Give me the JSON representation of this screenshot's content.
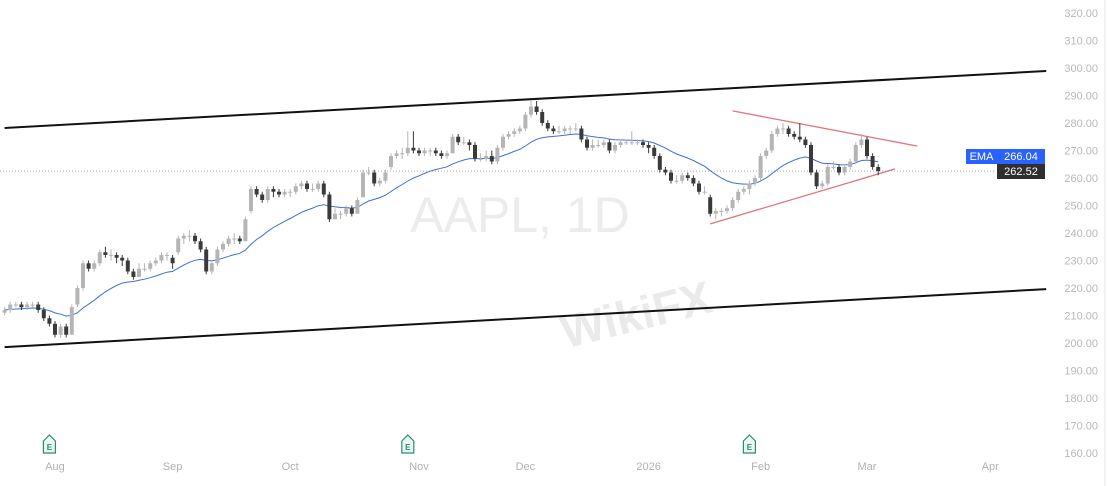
{
  "chart_data": {
    "type": "candlestick",
    "symbol_watermark": "AAPL, 1D",
    "overlay_watermark": "WikiFX",
    "ylim": [
      160,
      320
    ],
    "yticks": [
      "320.00",
      "310.00",
      "300.00",
      "290.00",
      "280.00",
      "270.00",
      "260.00",
      "250.00",
      "240.00",
      "230.00",
      "220.00",
      "210.00",
      "200.00",
      "190.00",
      "180.00",
      "170.00",
      "160.00"
    ],
    "xticks": [
      {
        "label": "Aug",
        "date": "2025-08-01"
      },
      {
        "label": "Sep",
        "date": "2025-09-02"
      },
      {
        "label": "Oct",
        "date": "2025-10-01"
      },
      {
        "label": "Nov",
        "date": "2025-11-03"
      },
      {
        "label": "Dec",
        "date": "2025-12-01"
      },
      {
        "label": "2026",
        "date": "2026-01-02"
      },
      {
        "label": "Feb",
        "date": "2026-02-02"
      },
      {
        "label": "Mar",
        "date": "2026-03-02"
      },
      {
        "label": "Apr",
        "date": "2026-04-01"
      }
    ],
    "grid": false,
    "colors": {
      "up": "#b5b5b5",
      "down": "#3a3a3a",
      "ema": "#3d6fd8",
      "channel": "#111111",
      "triangle": "#e0747a",
      "ema_badge": "#2962ff",
      "price_badge": "#2f2f2f"
    },
    "indicator": {
      "label": "EMA",
      "value": "266.04",
      "period": 20
    },
    "last_price": "262.52",
    "earnings_markers": [
      {
        "label": "E",
        "date": "2025-07-31"
      },
      {
        "label": "E",
        "date": "2025-10-30"
      },
      {
        "label": "E",
        "date": "2026-01-29"
      }
    ],
    "trendlines": [
      {
        "name": "channel-upper",
        "from": [
          "2025-07-21",
          278.2
        ],
        "to": [
          "2026-04-15",
          298.9
        ],
        "color": "#111111"
      },
      {
        "name": "channel-lower",
        "from": [
          "2025-07-21",
          198.5
        ],
        "to": [
          "2026-04-15",
          219.6
        ],
        "color": "#111111"
      },
      {
        "name": "triangle-upper",
        "from": [
          "2026-01-26",
          284.4
        ],
        "to": [
          "2026-03-13",
          271.6
        ],
        "color": "#e0747a"
      },
      {
        "name": "triangle-lower",
        "from": [
          "2026-01-20",
          243.3
        ],
        "to": [
          "2026-03-09",
          263.3
        ],
        "color": "#e0747a"
      }
    ],
    "candles_by_month": {
      "2025-07": [
        [
          21,
          211,
          213,
          210,
          212
        ],
        [
          22,
          212,
          215,
          211,
          214
        ],
        [
          23,
          214,
          215,
          213,
          214
        ],
        [
          24,
          214,
          215,
          212,
          213
        ],
        [
          25,
          213,
          215,
          212,
          214
        ],
        [
          28,
          214,
          215,
          213,
          214
        ],
        [
          29,
          214,
          215,
          211,
          212
        ],
        [
          30,
          212,
          213,
          208,
          209
        ],
        [
          31,
          209,
          210,
          206,
          207
        ]
      ],
      "2025-08": [
        [
          1,
          207,
          208,
          202,
          203
        ],
        [
          4,
          203,
          207,
          202,
          206
        ],
        [
          5,
          206,
          207,
          202,
          203
        ],
        [
          6,
          203,
          214,
          203,
          213
        ],
        [
          7,
          214,
          221,
          213,
          220
        ],
        [
          8,
          220,
          230,
          219,
          229
        ],
        [
          11,
          229,
          230,
          226,
          227
        ],
        [
          12,
          227,
          230,
          226,
          229
        ],
        [
          13,
          229,
          234,
          228,
          233
        ],
        [
          14,
          233,
          235,
          231,
          232
        ],
        [
          15,
          232,
          234,
          230,
          232
        ],
        [
          18,
          232,
          233,
          229,
          231
        ],
        [
          19,
          231,
          232,
          228,
          230
        ],
        [
          20,
          230,
          231,
          225,
          226
        ],
        [
          21,
          226,
          227,
          223,
          224
        ],
        [
          22,
          224,
          229,
          224,
          227
        ],
        [
          25,
          227,
          229,
          226,
          227
        ],
        [
          26,
          227,
          230,
          226,
          229
        ],
        [
          27,
          229,
          231,
          228,
          230
        ],
        [
          28,
          230,
          233,
          229,
          232
        ],
        [
          29,
          232,
          233,
          230,
          232
        ]
      ],
      "2025-09": [
        [
          2,
          231,
          232,
          227,
          229
        ],
        [
          3,
          233,
          239,
          232,
          238
        ],
        [
          4,
          238,
          240,
          236,
          239
        ],
        [
          5,
          239,
          241,
          237,
          239
        ],
        [
          8,
          239,
          240,
          236,
          237
        ],
        [
          9,
          237,
          238,
          233,
          234
        ],
        [
          10,
          234,
          235,
          225,
          226
        ],
        [
          11,
          226,
          230,
          225,
          229
        ],
        [
          12,
          229,
          235,
          228,
          234
        ],
        [
          15,
          234,
          237,
          233,
          236
        ],
        [
          16,
          236,
          239,
          235,
          238
        ],
        [
          17,
          238,
          240,
          236,
          238
        ],
        [
          18,
          238,
          239,
          236,
          237
        ],
        [
          19,
          237,
          246,
          237,
          245
        ],
        [
          22,
          248,
          257,
          247,
          256
        ],
        [
          23,
          256,
          257,
          253,
          254
        ],
        [
          24,
          254,
          255,
          251,
          252
        ],
        [
          25,
          252,
          257,
          251,
          256
        ],
        [
          26,
          256,
          257,
          253,
          255
        ],
        [
          29,
          255,
          256,
          253,
          254
        ],
        [
          30,
          254,
          256,
          253,
          255
        ]
      ],
      "2025-10": [
        [
          1,
          255,
          256,
          253,
          255
        ],
        [
          2,
          255,
          258,
          254,
          257
        ],
        [
          3,
          257,
          259,
          256,
          258
        ],
        [
          6,
          258,
          259,
          255,
          256
        ],
        [
          7,
          256,
          258,
          255,
          256
        ],
        [
          8,
          256,
          259,
          255,
          258
        ],
        [
          9,
          258,
          259,
          253,
          254
        ],
        [
          10,
          254,
          255,
          244,
          245
        ],
        [
          13,
          245,
          249,
          245,
          247
        ],
        [
          14,
          247,
          248,
          245,
          247
        ],
        [
          15,
          247,
          250,
          246,
          249
        ],
        [
          16,
          249,
          250,
          246,
          247
        ],
        [
          17,
          247,
          253,
          247,
          252
        ],
        [
          20,
          253,
          263,
          253,
          262
        ],
        [
          21,
          262,
          264,
          261,
          262
        ],
        [
          22,
          262,
          263,
          257,
          258
        ],
        [
          23,
          258,
          260,
          257,
          259
        ],
        [
          24,
          259,
          263,
          258,
          262
        ],
        [
          27,
          264,
          269,
          263,
          268
        ],
        [
          28,
          268,
          270,
          267,
          269
        ],
        [
          29,
          269,
          271,
          267,
          269
        ],
        [
          30,
          269,
          277,
          268,
          271
        ],
        [
          31,
          271,
          277,
          269,
          270
        ]
      ],
      "2025-11": [
        [
          3,
          270,
          271,
          268,
          269
        ],
        [
          4,
          269,
          271,
          268,
          270
        ],
        [
          5,
          270,
          271,
          268,
          270
        ],
        [
          6,
          270,
          271,
          268,
          269
        ],
        [
          7,
          269,
          270,
          267,
          268
        ],
        [
          10,
          268,
          270,
          267,
          269
        ],
        [
          11,
          269,
          276,
          269,
          275
        ],
        [
          12,
          275,
          276,
          272,
          273
        ],
        [
          13,
          273,
          275,
          272,
          273
        ],
        [
          14,
          273,
          274,
          270,
          272
        ],
        [
          17,
          272,
          273,
          266,
          267
        ],
        [
          18,
          267,
          269,
          266,
          267
        ],
        [
          19,
          267,
          270,
          266,
          268
        ],
        [
          20,
          268,
          270,
          265,
          266
        ],
        [
          21,
          266,
          272,
          265,
          271
        ],
        [
          24,
          271,
          276,
          270,
          275
        ],
        [
          25,
          275,
          277,
          274,
          276
        ],
        [
          26,
          276,
          278,
          275,
          277
        ],
        [
          28,
          277,
          279,
          276,
          278
        ]
      ],
      "2025-12": [
        [
          1,
          278,
          284,
          277,
          283
        ],
        [
          2,
          283,
          288,
          282,
          286
        ],
        [
          3,
          286,
          288,
          283,
          284
        ],
        [
          4,
          284,
          285,
          279,
          280
        ],
        [
          5,
          280,
          281,
          277,
          278
        ],
        [
          8,
          278,
          279,
          276,
          277
        ],
        [
          9,
          277,
          279,
          276,
          277
        ],
        [
          10,
          277,
          279,
          276,
          278
        ],
        [
          11,
          278,
          279,
          276,
          278
        ],
        [
          12,
          278,
          280,
          277,
          278
        ],
        [
          15,
          278,
          279,
          273,
          274
        ],
        [
          16,
          274,
          275,
          270,
          271
        ],
        [
          17,
          271,
          274,
          270,
          272
        ],
        [
          18,
          272,
          274,
          271,
          272
        ],
        [
          19,
          272,
          274,
          271,
          273
        ],
        [
          22,
          273,
          274,
          269,
          270
        ],
        [
          23,
          270,
          273,
          269,
          272
        ],
        [
          24,
          272,
          274,
          271,
          273
        ],
        [
          26,
          273,
          274,
          272,
          273
        ],
        [
          29,
          273,
          277,
          272,
          273
        ],
        [
          30,
          273,
          274,
          272,
          273
        ],
        [
          31,
          273,
          274,
          271,
          272
        ]
      ],
      "2026-01": [
        [
          2,
          272,
          273,
          269,
          271
        ],
        [
          5,
          271,
          272,
          267,
          268
        ],
        [
          6,
          268,
          269,
          262,
          263
        ],
        [
          7,
          263,
          264,
          261,
          262
        ],
        [
          8,
          262,
          263,
          258,
          259
        ],
        [
          9,
          259,
          261,
          258,
          259
        ],
        [
          12,
          259,
          262,
          258,
          261
        ],
        [
          13,
          261,
          262,
          259,
          260
        ],
        [
          14,
          260,
          261,
          257,
          258
        ],
        [
          15,
          258,
          259,
          254,
          255
        ],
        [
          16,
          255,
          257,
          254,
          255
        ],
        [
          20,
          253,
          254,
          246,
          247
        ],
        [
          21,
          247,
          249,
          245,
          248
        ],
        [
          22,
          248,
          249,
          246,
          248
        ],
        [
          23,
          248,
          250,
          247,
          249
        ],
        [
          26,
          249,
          253,
          248,
          252
        ],
        [
          27,
          252,
          256,
          251,
          255
        ],
        [
          28,
          255,
          257,
          254,
          256
        ],
        [
          29,
          256,
          259,
          254,
          258
        ],
        [
          30,
          258,
          261,
          257,
          260
        ]
      ],
      "2026-02": [
        [
          2,
          260,
          269,
          259,
          268
        ],
        [
          3,
          268,
          271,
          267,
          270
        ],
        [
          4,
          270,
          277,
          269,
          276
        ],
        [
          5,
          276,
          279,
          275,
          278
        ],
        [
          6,
          278,
          280,
          276,
          278
        ],
        [
          9,
          278,
          279,
          275,
          276
        ],
        [
          10,
          276,
          277,
          274,
          275
        ],
        [
          11,
          275,
          280,
          273,
          274
        ],
        [
          12,
          274,
          275,
          271,
          272
        ],
        [
          13,
          272,
          273,
          261,
          262
        ],
        [
          17,
          262,
          263,
          256,
          257
        ],
        [
          18,
          257,
          259,
          256,
          258
        ],
        [
          19,
          258,
          265,
          257,
          264
        ],
        [
          20,
          264,
          266,
          263,
          264
        ],
        [
          23,
          264,
          265,
          261,
          262
        ],
        [
          24,
          262,
          265,
          261,
          264
        ],
        [
          25,
          264,
          267,
          263,
          266
        ],
        [
          26,
          266,
          273,
          265,
          272
        ],
        [
          27,
          272,
          276,
          271,
          274
        ]
      ],
      "2026-03": [
        [
          2,
          274,
          275,
          267,
          268
        ],
        [
          3,
          268,
          269,
          263,
          264
        ],
        [
          4,
          264,
          265,
          261,
          262.52
        ]
      ]
    }
  }
}
